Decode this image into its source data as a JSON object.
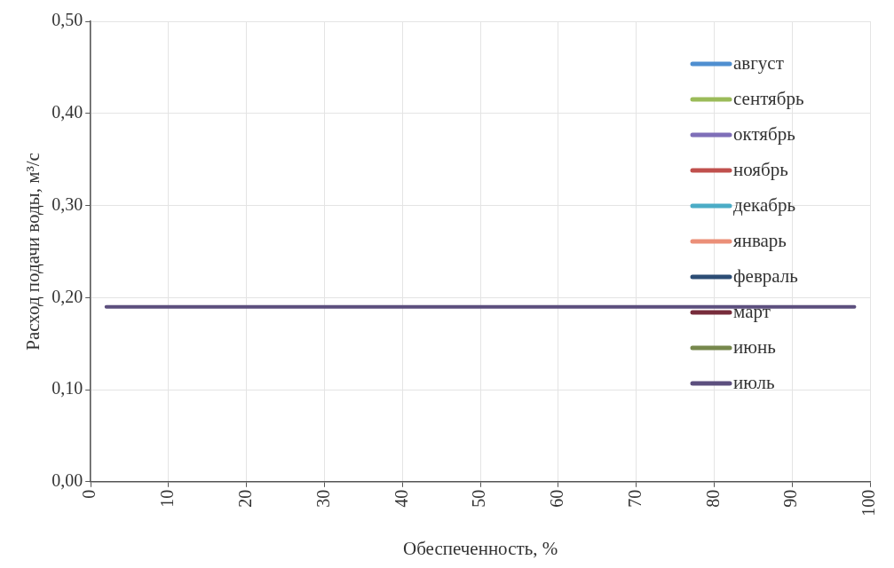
{
  "chart_data": {
    "type": "line",
    "xlabel": "Обеспеченность, %",
    "ylabel": "Расход подачи воды, м³/с",
    "xlim": [
      0,
      100
    ],
    "xticks": [
      0,
      10,
      20,
      30,
      40,
      50,
      60,
      70,
      80,
      90,
      100
    ],
    "ylim": [
      0,
      0.5
    ],
    "yticks": [
      {
        "value": 0,
        "label": "0,00"
      },
      {
        "value": 0.1,
        "label": "0,10"
      },
      {
        "value": 0.2,
        "label": "0,20"
      },
      {
        "value": 0.3,
        "label": "0,30"
      },
      {
        "value": 0.4,
        "label": "0,40"
      },
      {
        "value": 0.5,
        "label": "0,50"
      }
    ],
    "grid": true,
    "legend": "top right",
    "marker": "none",
    "line_style": "solid",
    "x": [
      2,
      98
    ],
    "series": [
      {
        "name": "август",
        "color": "#4f8fd0",
        "values": [
          null,
          null
        ]
      },
      {
        "name": "сентябрь",
        "color": "#9bbb59",
        "values": [
          null,
          null
        ]
      },
      {
        "name": "октябрь",
        "color": "#7f6fb8",
        "values": [
          null,
          null
        ]
      },
      {
        "name": "ноябрь",
        "color": "#c0504d",
        "values": [
          null,
          null
        ]
      },
      {
        "name": "декабрь",
        "color": "#4bacc6",
        "values": [
          null,
          null
        ]
      },
      {
        "name": "январь",
        "color": "#eb8f78",
        "values": [
          null,
          null
        ]
      },
      {
        "name": "февраль",
        "color": "#2c4d75",
        "values": [
          null,
          null
        ]
      },
      {
        "name": "март",
        "color": "#772c3b",
        "values": [
          null,
          null
        ]
      },
      {
        "name": "июнь",
        "color": "#77884d",
        "values": [
          null,
          null
        ]
      },
      {
        "name": "июль",
        "color": "#5c4f7e",
        "values": [
          0.19,
          0.19
        ]
      }
    ]
  }
}
